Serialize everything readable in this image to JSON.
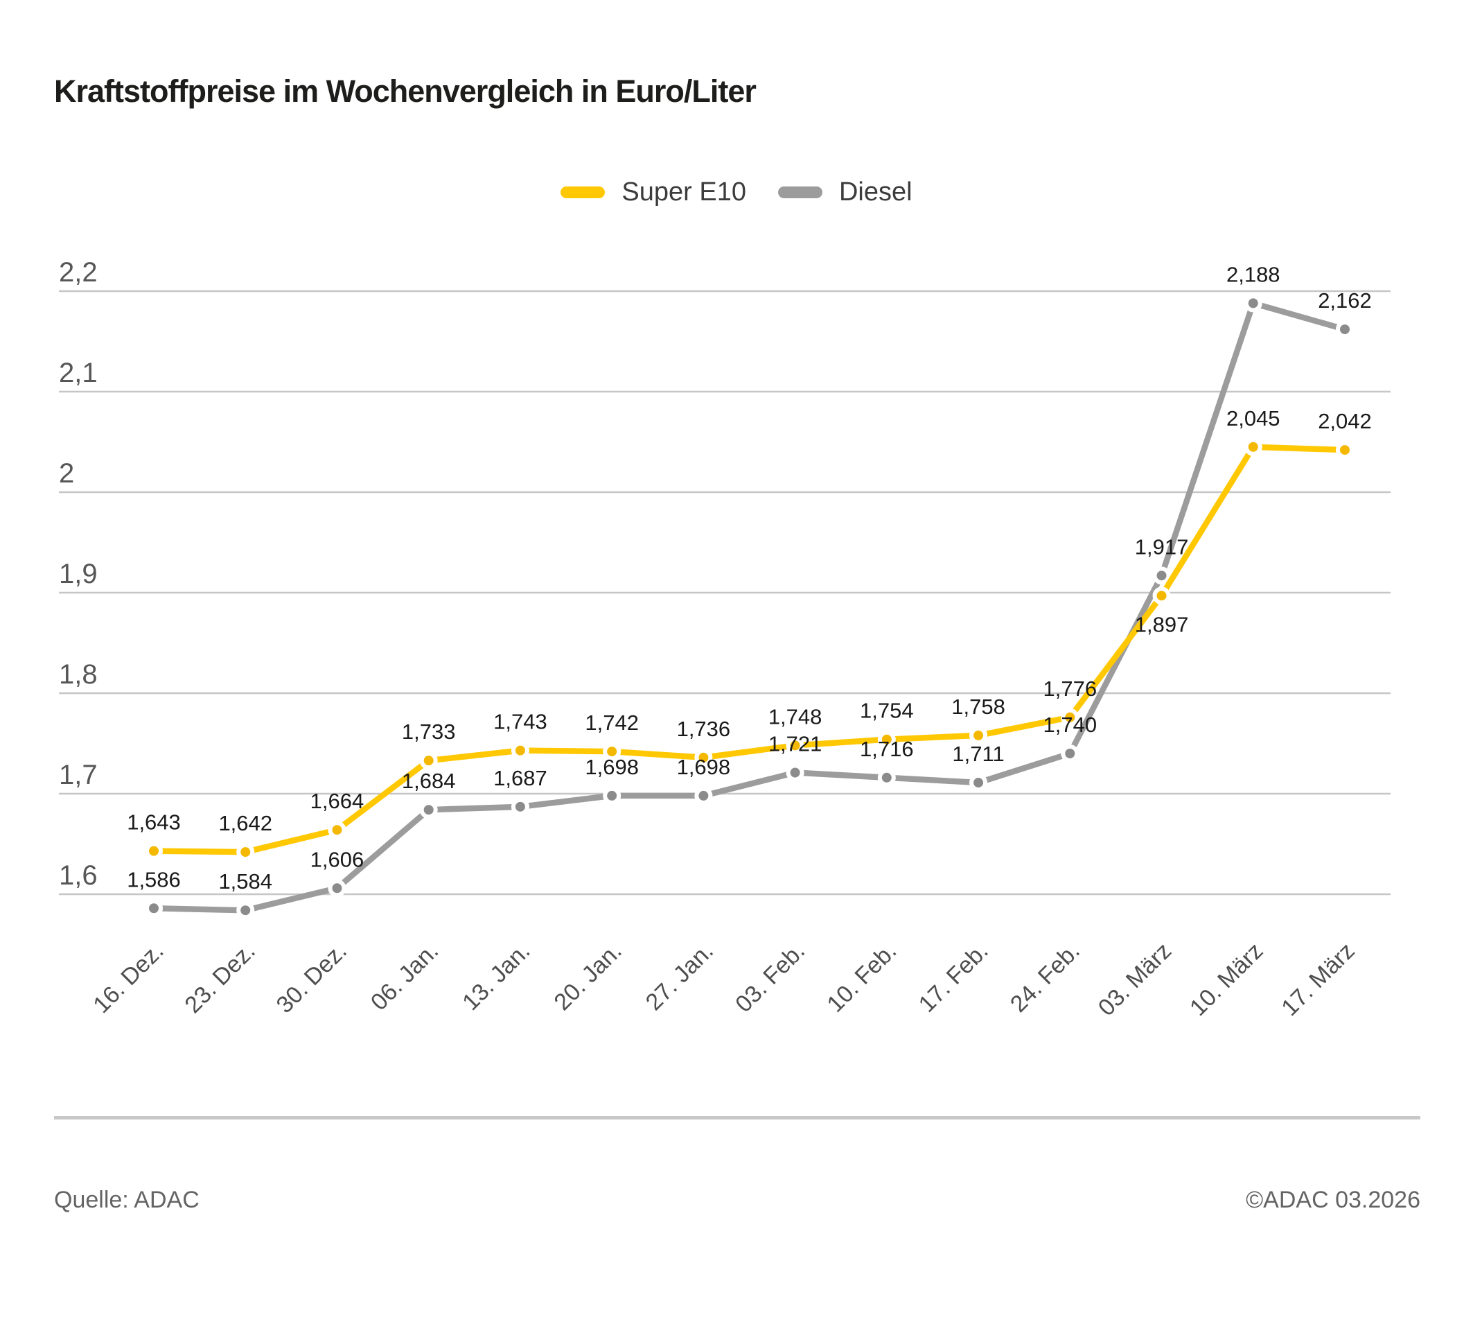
{
  "title": "Kraftstoffpreise im Wochenvergleich in Euro/Liter",
  "footer": {
    "source": "Quelle: ADAC",
    "copyright": "©ADAC 03.2026"
  },
  "colors": {
    "super_e10": "#FFC803",
    "super_e10_marker": "#F4B800",
    "diesel": "#9C9C9C",
    "diesel_marker": "#8B8B8B",
    "gridline": "#c6c6c6",
    "axis_text": "#4e4e4e",
    "data_label_text": "#1a1a1a"
  },
  "chart_data": {
    "type": "line",
    "title": "Kraftstoffpreise im Wochenvergleich in Euro/Liter",
    "unit": "Euro/Liter",
    "xlabel": "",
    "ylabel": "",
    "grid": "horizontal",
    "legend_position": "top-center",
    "ylim": [
      1.55,
      2.25
    ],
    "categories": [
      "16. Dez.",
      "23. Dez.",
      "30. Dez.",
      "06. Jan.",
      "13. Jan.",
      "20. Jan.",
      "27. Jan.",
      "03. Feb.",
      "10. Feb.",
      "17. Feb.",
      "24. Feb.",
      "03. März",
      "10. März",
      "17. März"
    ],
    "yticks": {
      "values": [
        2.2,
        2.1,
        2.0,
        1.9,
        1.8,
        1.7,
        1.6
      ],
      "labels": [
        "2,2",
        "2,1",
        "2",
        "1,9",
        "1,8",
        "1,7",
        "1,6"
      ]
    },
    "series": [
      {
        "name": "Super E10",
        "color": "#FFC803",
        "marker_color": "#F4B800",
        "values": [
          1.643,
          1.642,
          1.664,
          1.733,
          1.743,
          1.742,
          1.736,
          1.748,
          1.754,
          1.758,
          1.776,
          1.897,
          2.045,
          2.042
        ],
        "display": [
          "1,643",
          "1,642",
          "1,664",
          "1,733",
          "1,743",
          "1,742",
          "1,736",
          "1,748",
          "1,754",
          "1,758",
          "1,776",
          "1,897",
          "2,045",
          "2,042"
        ],
        "label_below_indices": [
          11
        ]
      },
      {
        "name": "Diesel",
        "color": "#9C9C9C",
        "marker_color": "#8B8B8B",
        "values": [
          1.586,
          1.584,
          1.606,
          1.684,
          1.687,
          1.698,
          1.698,
          1.721,
          1.716,
          1.711,
          1.74,
          1.917,
          2.188,
          2.162
        ],
        "display": [
          "1,586",
          "1,584",
          "1,606",
          "1,684",
          "1,687",
          "1,698",
          "1,698",
          "1,721",
          "1,716",
          "1,711",
          "1,740",
          "1,917",
          "2,188",
          "2,162"
        ],
        "label_below_indices": []
      }
    ]
  }
}
